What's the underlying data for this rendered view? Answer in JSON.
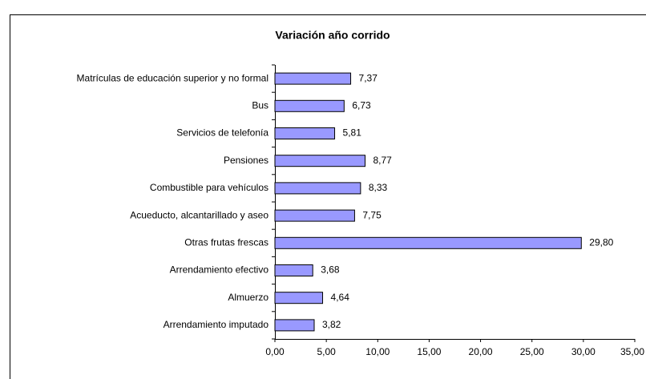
{
  "chart_data": {
    "type": "bar",
    "orientation": "horizontal",
    "title": "Variación año corrido",
    "categories": [
      "Matrículas de educación superior y no formal",
      "Bus",
      "Servicios de telefonía",
      "Pensiones",
      "Combustible para vehículos",
      "Acueducto, alcantarillado y aseo",
      "Otras frutas frescas",
      "Arrendamiento efectivo",
      "Almuerzo",
      "Arrendamiento imputado"
    ],
    "values": [
      7.37,
      6.73,
      5.81,
      8.77,
      8.33,
      7.75,
      29.8,
      3.68,
      4.64,
      3.82
    ],
    "value_labels": [
      "7,37",
      "6,73",
      "5,81",
      "8,77",
      "8,33",
      "7,75",
      "29,80",
      "3,68",
      "4,64",
      "3,82"
    ],
    "color": "#9999ff",
    "xlim": [
      0,
      35
    ],
    "xticks": [
      {
        "value": 0,
        "label": "0,00"
      },
      {
        "value": 5,
        "label": "5,00"
      },
      {
        "value": 10,
        "label": "10,00"
      },
      {
        "value": 15,
        "label": "15,00"
      },
      {
        "value": 20,
        "label": "20,00"
      },
      {
        "value": 25,
        "label": "25,00"
      },
      {
        "value": 30,
        "label": "30,00"
      },
      {
        "value": 35,
        "label": "35,00"
      }
    ],
    "grid": false
  }
}
